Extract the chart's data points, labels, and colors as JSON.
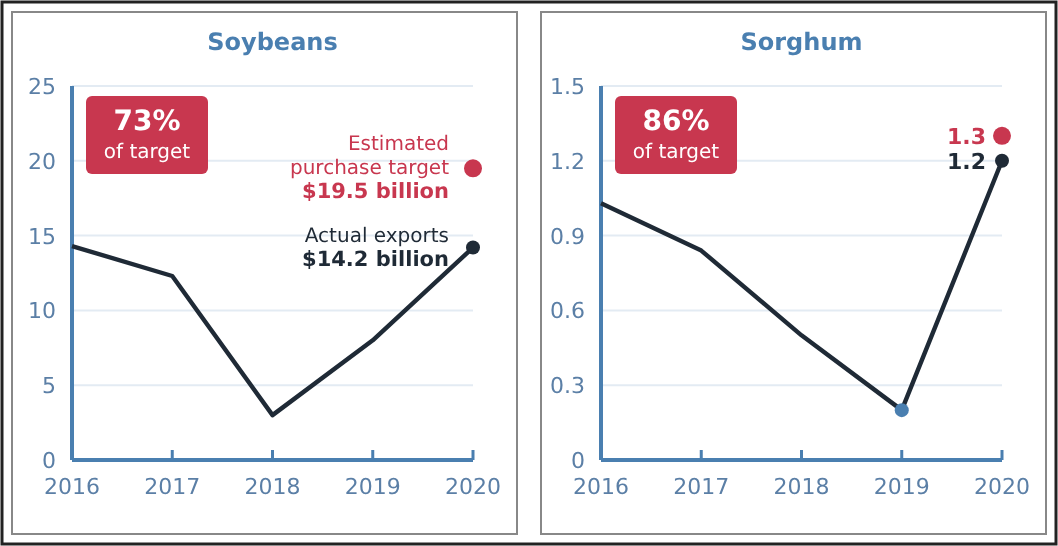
{
  "chart_data": [
    {
      "type": "line",
      "title": "Soybeans",
      "categories": [
        "2016",
        "2017",
        "2018",
        "2019",
        "2020"
      ],
      "ylim": [
        0,
        25
      ],
      "yticks": [
        0,
        5,
        10,
        15,
        20,
        25
      ],
      "grid": "y",
      "series": [
        {
          "marker": "none",
          "color": "#1f2a36",
          "values": [
            14.3,
            12.3,
            3.0,
            8.0,
            14.2
          ]
        },
        {
          "type": "scatter",
          "marker": "circle",
          "color": "#1f2a36",
          "values": [
            null,
            null,
            null,
            null,
            14.2
          ]
        },
        {
          "type": "scatter",
          "marker": "circle",
          "color": "#c8374f",
          "values": [
            null,
            null,
            null,
            null,
            19.5
          ]
        }
      ],
      "annotations": [
        "73%\nof target",
        {
          "text": "Estimated\npurchase target\n$19.5 billion",
          "x": "2020",
          "y": 19.5
        },
        {
          "text": "Actual exports\n$14.2 billion",
          "x": "2020",
          "y": 14.2
        }
      ]
    },
    {
      "type": "line",
      "title": "Sorghum",
      "categories": [
        "2016",
        "2017",
        "2018",
        "2019",
        "2020"
      ],
      "ylim": [
        0,
        1.5
      ],
      "yticks": [
        {
          "value": 0,
          "label": "0"
        },
        {
          "value": 0.3,
          "label": "0.3"
        },
        {
          "value": 0.6,
          "label": "0.6"
        },
        {
          "value": 0.9,
          "label": "0.9"
        },
        {
          "value": 1.2,
          "label": "1.2"
        },
        {
          "value": 1.5,
          "label": "1.5"
        }
      ],
      "grid": "y",
      "series": [
        {
          "marker": "none",
          "color": "#1f2a36",
          "values": [
            1.03,
            0.84,
            0.5,
            0.2,
            1.2
          ]
        },
        {
          "type": "scatter",
          "marker": "circle",
          "color": "#4a7fb0",
          "values": [
            null,
            null,
            null,
            0.2,
            null
          ]
        },
        {
          "type": "scatter",
          "marker": "circle",
          "color": "#1f2a36",
          "values": [
            null,
            null,
            null,
            null,
            1.2
          ],
          "value_labels": [
            null,
            null,
            null,
            null,
            "1.2"
          ]
        },
        {
          "type": "scatter",
          "marker": "circle",
          "color": "#c8374f",
          "values": [
            null,
            null,
            null,
            null,
            1.3
          ],
          "value_labels": [
            null,
            null,
            null,
            null,
            "1.3"
          ]
        }
      ],
      "annotations": [
        "86%\nof target"
      ]
    }
  ]
}
